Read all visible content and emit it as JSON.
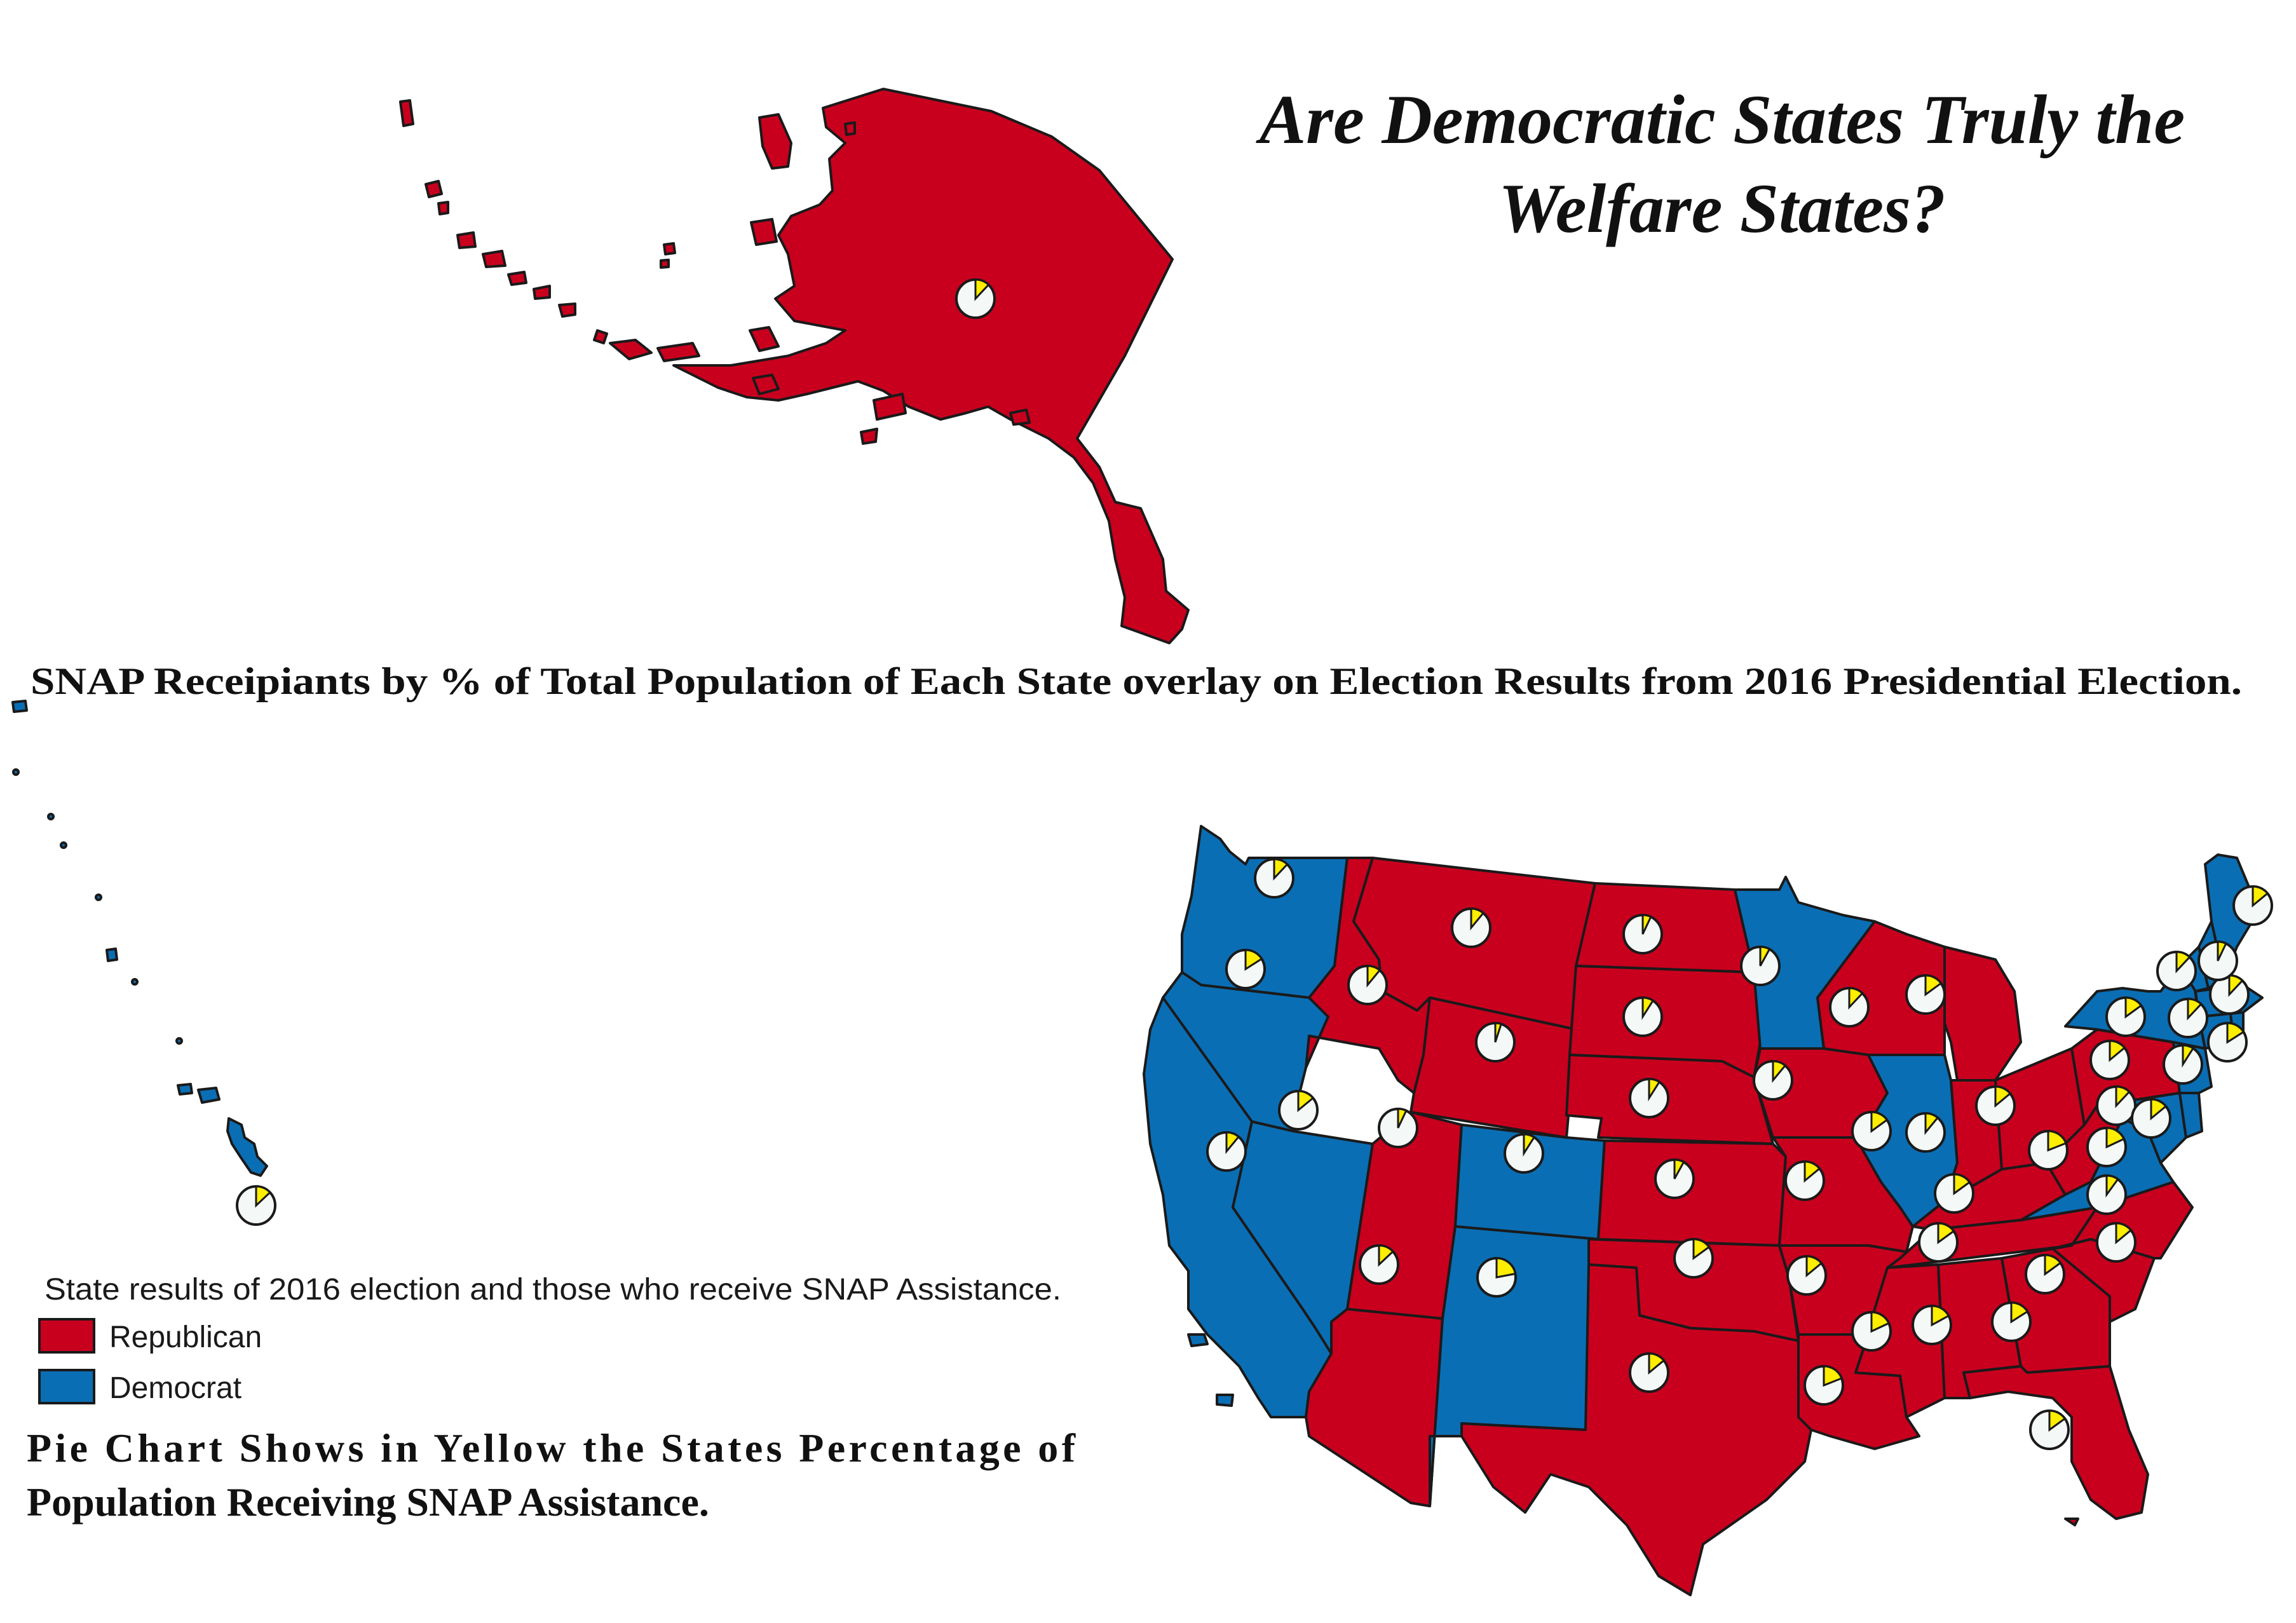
{
  "title": {
    "line1": "Are Democratic States Truly the",
    "line2": "Welfare States?"
  },
  "subtitle": "SNAP Receipiants by % of Total Population of Each State overlay on Election Results from 2016 Presidential Election.",
  "legend": {
    "heading": "State results of 2016 election and those who receive SNAP Assistance.",
    "items": [
      {
        "label": "Republican",
        "color": "#c8001e"
      },
      {
        "label": "Democrat",
        "color": "#0a6eb4"
      }
    ]
  },
  "pie_note": {
    "line1": "Pie Chart Shows in Yellow the States Percentage of",
    "line2": "Population Receiving SNAP Assistance."
  },
  "colors": {
    "republican": "#c8001e",
    "democrat": "#0a6eb4",
    "pie_snap": "#ffee00",
    "pie_rest": "#f4f8f6",
    "border": "#1a1a1a"
  },
  "icons": {
    "pie_marker": "pie-chart-icon"
  },
  "states": [
    {
      "name": "Alaska",
      "party": "republican",
      "snap_pct": 12
    },
    {
      "name": "Hawaii",
      "party": "democrat",
      "snap_pct": 13
    },
    {
      "name": "Washington",
      "party": "democrat",
      "snap_pct": 12
    },
    {
      "name": "Oregon",
      "party": "democrat",
      "snap_pct": 16
    },
    {
      "name": "California",
      "party": "democrat",
      "snap_pct": 11
    },
    {
      "name": "Nevada",
      "party": "democrat",
      "snap_pct": 14
    },
    {
      "name": "Idaho",
      "party": "republican",
      "snap_pct": 11
    },
    {
      "name": "Montana",
      "party": "republican",
      "snap_pct": 11
    },
    {
      "name": "Wyoming",
      "party": "republican",
      "snap_pct": 5
    },
    {
      "name": "Utah",
      "party": "republican",
      "snap_pct": 7
    },
    {
      "name": "Arizona",
      "party": "republican",
      "snap_pct": 13
    },
    {
      "name": "Colorado",
      "party": "democrat",
      "snap_pct": 9
    },
    {
      "name": "New Mexico",
      "party": "democrat",
      "snap_pct": 22
    },
    {
      "name": "North Dakota",
      "party": "republican",
      "snap_pct": 7
    },
    {
      "name": "South Dakota",
      "party": "republican",
      "snap_pct": 9
    },
    {
      "name": "Nebraska",
      "party": "republican",
      "snap_pct": 9
    },
    {
      "name": "Kansas",
      "party": "republican",
      "snap_pct": 8
    },
    {
      "name": "Oklahoma",
      "party": "republican",
      "snap_pct": 15
    },
    {
      "name": "Texas",
      "party": "republican",
      "snap_pct": 14
    },
    {
      "name": "Minnesota",
      "party": "democrat",
      "snap_pct": 8
    },
    {
      "name": "Iowa",
      "party": "republican",
      "snap_pct": 11
    },
    {
      "name": "Missouri",
      "party": "republican",
      "snap_pct": 14
    },
    {
      "name": "Arkansas",
      "party": "republican",
      "snap_pct": 14
    },
    {
      "name": "Louisiana",
      "party": "republican",
      "snap_pct": 19
    },
    {
      "name": "Wisconsin",
      "party": "republican",
      "snap_pct": 12
    },
    {
      "name": "Illinois",
      "party": "democrat",
      "snap_pct": 15
    },
    {
      "name": "Michigan",
      "party": "republican",
      "snap_pct": 15
    },
    {
      "name": "Indiana",
      "party": "republican",
      "snap_pct": 11
    },
    {
      "name": "Ohio",
      "party": "republican",
      "snap_pct": 14
    },
    {
      "name": "Kentucky",
      "party": "republican",
      "snap_pct": 15
    },
    {
      "name": "Tennessee",
      "party": "republican",
      "snap_pct": 15
    },
    {
      "name": "Mississippi",
      "party": "republican",
      "snap_pct": 18
    },
    {
      "name": "Alabama",
      "party": "republican",
      "snap_pct": 17
    },
    {
      "name": "Georgia",
      "party": "republican",
      "snap_pct": 16
    },
    {
      "name": "Florida",
      "party": "republican",
      "snap_pct": 15
    },
    {
      "name": "South Carolina",
      "party": "republican",
      "snap_pct": 15
    },
    {
      "name": "North Carolina",
      "party": "republican",
      "snap_pct": 14
    },
    {
      "name": "West Virginia",
      "party": "republican",
      "snap_pct": 19
    },
    {
      "name": "Virginia",
      "party": "democrat",
      "snap_pct": 10
    },
    {
      "name": "Pennsylvania",
      "party": "republican",
      "snap_pct": 14
    },
    {
      "name": "New York",
      "party": "democrat",
      "snap_pct": 15
    },
    {
      "name": "Maryland",
      "party": "democrat",
      "snap_pct": 12
    },
    {
      "name": "Delaware",
      "party": "democrat",
      "snap_pct": 14
    },
    {
      "name": "New Jersey",
      "party": "democrat",
      "snap_pct": 9
    },
    {
      "name": "Connecticut",
      "party": "democrat",
      "snap_pct": 12
    },
    {
      "name": "Rhode Island",
      "party": "democrat",
      "snap_pct": 16
    },
    {
      "name": "Massachusetts",
      "party": "democrat",
      "snap_pct": 12
    },
    {
      "name": "Vermont",
      "party": "democrat",
      "snap_pct": 12
    },
    {
      "name": "New Hampshire",
      "party": "democrat",
      "snap_pct": 7
    },
    {
      "name": "Maine",
      "party": "democrat",
      "snap_pct": 14
    },
    {
      "name": "District of Columbia",
      "party": "democrat",
      "snap_pct": 18
    }
  ]
}
